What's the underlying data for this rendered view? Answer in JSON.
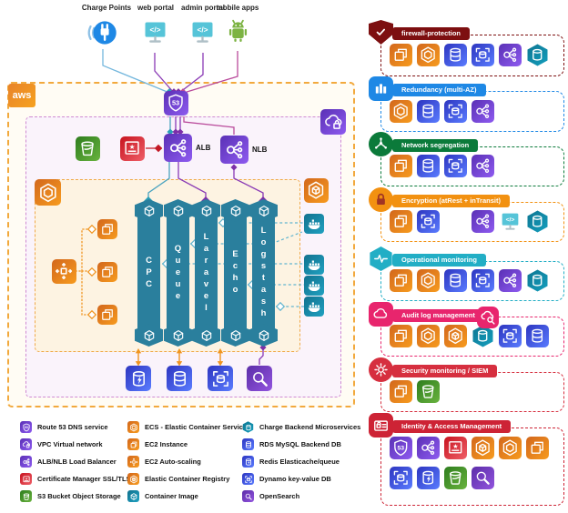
{
  "diagram": {
    "aws_label": "aws",
    "alb_label": "ALB",
    "nlb_label": "NLB",
    "actors": [
      {
        "label": "Charge Points",
        "icon": "charge-plug"
      },
      {
        "label": "web portal",
        "icon": "web-portal"
      },
      {
        "label": "admin portal",
        "icon": "web-portal"
      },
      {
        "label": "mobile apps",
        "icon": "android"
      }
    ],
    "bars": [
      {
        "label": "CPC"
      },
      {
        "label": "Queue"
      },
      {
        "label": "Laravel"
      },
      {
        "label": "Echo"
      },
      {
        "label": "Logstash"
      }
    ],
    "nodes": [
      "route53",
      "vpc-network",
      "s3-bucket",
      "certificate-manager",
      "load-balancer",
      "ecs",
      "ecr",
      "auto-scaling",
      "ec2-instance",
      "container-image",
      "docker-whale",
      "redis-cache",
      "rds-mysql",
      "dynamo-db",
      "opensearch"
    ]
  },
  "legend": {
    "columns": [
      [
        {
          "icon": "route53",
          "label": "Route 53 DNS service"
        },
        {
          "icon": "vpc-network",
          "label": "VPC Virtual network"
        },
        {
          "icon": "load-balancer",
          "label": "ALB/NLB Load Balancer"
        },
        {
          "icon": "certificate-manager",
          "label": "Certificate Manager SSL/TLS"
        },
        {
          "icon": "s3-bucket",
          "label": "S3 Bucket Object Storage"
        }
      ],
      [
        {
          "icon": "ecs",
          "label": "ECS - Elastic Container Service"
        },
        {
          "icon": "ec2-instance",
          "label": "EC2 Instance"
        },
        {
          "icon": "auto-scaling",
          "label": "EC2 Auto-scaling"
        },
        {
          "icon": "ecr",
          "label": "Elastic Container Registry"
        },
        {
          "icon": "container-image",
          "label": "Container Image"
        }
      ],
      [
        {
          "icon": "microservices",
          "label": "Charge Backend Microservices"
        },
        {
          "icon": "rds-mysql",
          "label": "RDS MySQL Backend DB"
        },
        {
          "icon": "redis-cache",
          "label": "Redis Elasticache/queue"
        },
        {
          "icon": "dynamo-db",
          "label": "Dynamo key-value DB"
        },
        {
          "icon": "opensearch",
          "label": "OpenSearch"
        }
      ]
    ]
  },
  "security_groups": [
    {
      "title": "firewall-protection",
      "color": "#7d0f10",
      "badge": "shield-check",
      "icons": [
        "ec2-instance",
        "ecs",
        "rds-mysql",
        "dynamo-db",
        "load-balancer",
        "microservices"
      ]
    },
    {
      "title": "Redundancy (multi-AZ)",
      "color": "#1e88e5",
      "badge": "multi-az",
      "icons": [
        "ecs",
        "rds-mysql",
        "dynamo-db",
        "load-balancer"
      ]
    },
    {
      "title": "Network segregation",
      "color": "#0b7a3a",
      "badge": "network-nodes",
      "icons": [
        "ec2-instance",
        "rds-mysql",
        "dynamo-db",
        "load-balancer"
      ]
    },
    {
      "title": "Encryption (atRest + inTransit)",
      "color": "#f29111",
      "badge": "padlock",
      "icons": [
        "ec2-instance",
        "dynamo-db",
        "gap",
        "load-balancer",
        "web-portal",
        "microservices"
      ]
    },
    {
      "title": "Operational monitoring",
      "color": "#22aec5",
      "badge": "pulse",
      "icons": [
        "ec2-instance",
        "ecs",
        "rds-mysql",
        "dynamo-db",
        "load-balancer",
        "microservices"
      ]
    },
    {
      "title": "Audit log management",
      "color": "#e8256d",
      "badge": "cloud",
      "badge2": "cloud-search",
      "icons": [
        "ec2-instance",
        "ecs",
        "ecr",
        "microservices",
        "dynamo-db",
        "rds-mysql"
      ]
    },
    {
      "title": "Security monitoring / SIEM",
      "color": "#d62f3f",
      "badge": "gear",
      "icons": [
        "ec2-instance",
        "s3-bucket"
      ]
    },
    {
      "title": "Identity & Access Management",
      "color": "#cd2335",
      "badge": "iam-lock",
      "icons_rows": [
        [
          "route53",
          "load-balancer",
          "certificate-manager",
          "ecr",
          "ecs",
          "ec2-instance"
        ],
        [
          "dynamo-db",
          "redis-cache",
          "s3-bucket",
          "opensearch"
        ]
      ]
    }
  ],
  "palette": {
    "aws_orange": "#f2a93d",
    "vpc_purple": "#cf8ad2",
    "ecs_orange": "#efa94a",
    "bar_teal": "#2a7f9d",
    "icon_orange": "#f79b1e",
    "icon_purple": "#8e5bf0",
    "icon_blue": "#5a7cff",
    "icon_green": "#69b33e",
    "icon_red": "#ef5f68",
    "icon_teal": "#1fa0c0",
    "wire_teal": "#63b5cf",
    "wire_purple": "#8a3ab5",
    "wire_magenta": "#b94a9b",
    "wire_red": "#c21825",
    "wire_orange": "#f0941f"
  }
}
